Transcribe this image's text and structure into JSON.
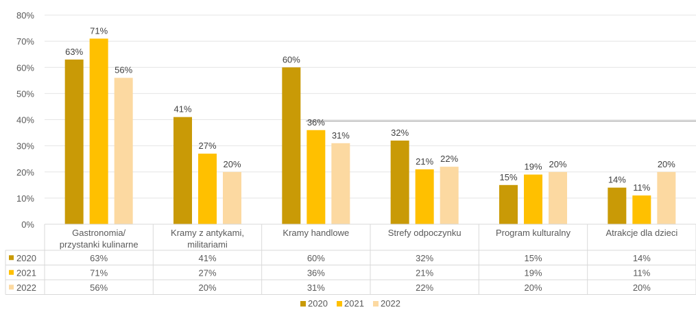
{
  "chart_data": {
    "type": "bar",
    "categories": [
      [
        "Gastronomia/",
        "przystanki kulinarne"
      ],
      [
        "Kramy z antykami,",
        "militariami"
      ],
      [
        "Kramy handlowe"
      ],
      [
        "Strefy odpoczynku"
      ],
      [
        "Program kulturalny"
      ],
      [
        "Atrakcje dla dzieci"
      ]
    ],
    "series": [
      {
        "name": "2020",
        "values": [
          63,
          41,
          60,
          32,
          15,
          14
        ],
        "color": "#C99A06"
      },
      {
        "name": "2021",
        "values": [
          71,
          27,
          36,
          21,
          19,
          11
        ],
        "color": "#FFC000"
      },
      {
        "name": "2022",
        "values": [
          56,
          20,
          31,
          22,
          20,
          20
        ],
        "color": "#FCD9A1"
      }
    ],
    "ylim": [
      0,
      80
    ],
    "yticks": [
      0,
      10,
      20,
      30,
      40,
      50,
      60,
      70,
      80
    ],
    "value_suffix": "%",
    "grid": true,
    "data_table": true,
    "legend": "bottom-center"
  }
}
